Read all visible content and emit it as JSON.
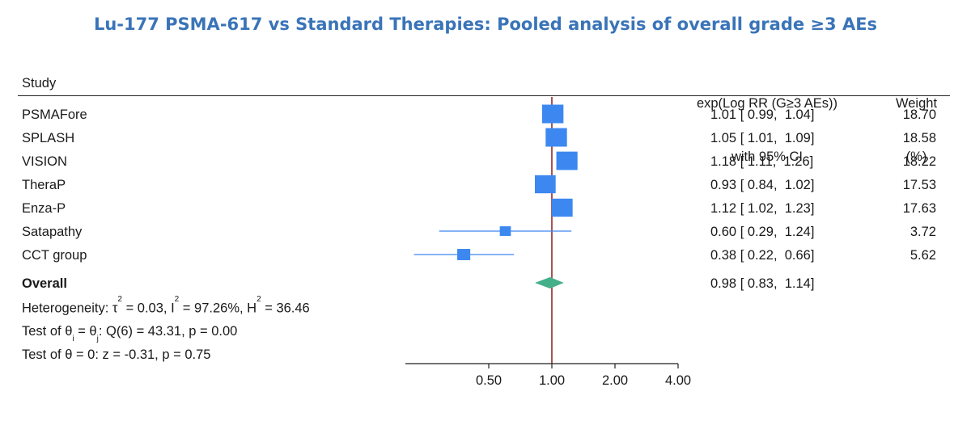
{
  "chart_data": {
    "type": "forest",
    "title": "Lu-177 PSMA-617 vs Standard Therapies: Pooled analysis of overall grade ≥3 AEs",
    "column_headers": {
      "study": "Study",
      "estimate_line1": "exp(Log RR (G≥3 AEs))",
      "estimate_line2": "with 95% CI",
      "weight_line1": "Weight",
      "weight_line2": "(%)"
    },
    "studies": [
      {
        "name": "PSMAFore",
        "rr": 1.01,
        "lower": 0.99,
        "upper": 1.04,
        "ci_text": "1.01 [ 0.99,  1.04]",
        "weight": "18.70"
      },
      {
        "name": "SPLASH",
        "rr": 1.05,
        "lower": 1.01,
        "upper": 1.09,
        "ci_text": "1.05 [ 1.01,  1.09]",
        "weight": "18.58"
      },
      {
        "name": "VISION",
        "rr": 1.18,
        "lower": 1.11,
        "upper": 1.26,
        "ci_text": "1.18 [ 1.11,  1.26]",
        "weight": "18.22"
      },
      {
        "name": "TheraP",
        "rr": 0.93,
        "lower": 0.84,
        "upper": 1.02,
        "ci_text": "0.93 [ 0.84,  1.02]",
        "weight": "17.53"
      },
      {
        "name": "Enza-P",
        "rr": 1.12,
        "lower": 1.02,
        "upper": 1.23,
        "ci_text": "1.12 [ 1.02,  1.23]",
        "weight": "17.63"
      },
      {
        "name": "Satapathy",
        "rr": 0.6,
        "lower": 0.29,
        "upper": 1.24,
        "ci_text": "0.60 [ 0.29,  1.24]",
        "weight": "3.72"
      },
      {
        "name": "CCT group",
        "rr": 0.38,
        "lower": 0.22,
        "upper": 0.66,
        "ci_text": "0.38 [ 0.22,  0.66]",
        "weight": "5.62"
      }
    ],
    "overall": {
      "name": "Overall",
      "rr": 0.98,
      "lower": 0.83,
      "upper": 1.14,
      "ci_text": "0.98 [ 0.83,  1.14]"
    },
    "heterogeneity": {
      "prefix": "Heterogeneity: τ",
      "tau2": " = 0.03, I",
      "i2": " = 97.26%, H",
      "h2": " = 36.46",
      "sup": "2"
    },
    "test_homogeneity": {
      "part1": "Test of θ",
      "sub_i": "i",
      "part2": " = θ",
      "sub_j": "j",
      "part3": ": Q(6) = 43.31, p = 0.00"
    },
    "test_overall": "Test of θ = 0: z = -0.31, p = 0.75",
    "x_axis": {
      "scale": "log",
      "ticks": [
        0.5,
        1,
        2,
        4
      ],
      "tick_labels": [
        "0.50",
        "1.00",
        "2.00",
        "4.00"
      ],
      "xlim": [
        0.2,
        4
      ]
    },
    "colors": {
      "marker": "#3c88f0",
      "ci_line": "#3c88f0",
      "diamond": "#44b08a",
      "ref_line": "#8b1a1a",
      "axis": "#222222",
      "title": "#3a74b8"
    }
  }
}
